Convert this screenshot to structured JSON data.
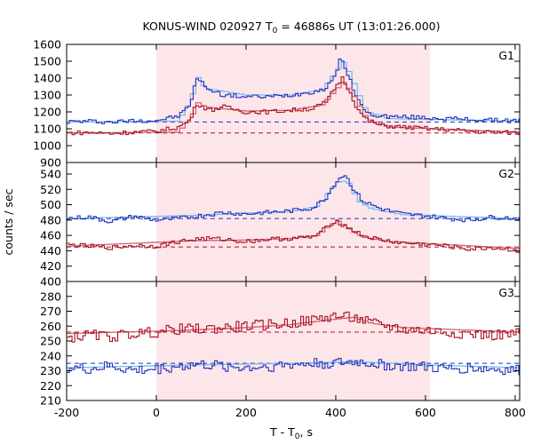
{
  "chart_data": {
    "type": "line",
    "title_main": "KONUS-WIND 020927 T",
    "title_sub": "0",
    "title_rest": " = 46886s UT (13:01:26.000)",
    "xlabel_main": "T - T",
    "xlabel_sub": "0",
    "xlabel_rest": ", s",
    "ylabel": "counts / sec",
    "xlim": [
      -200,
      810
    ],
    "xticks": [
      "-200",
      "0",
      "200",
      "400",
      "600",
      "800"
    ],
    "shaded_interval": [
      0,
      610
    ],
    "colors": {
      "blue_series": "#2233bb",
      "blue_fit": "#77bbee",
      "red_series": "#aa1122",
      "red_fit": "#cc6677",
      "shade": "#fde6ea"
    },
    "panels": [
      {
        "label": "G1",
        "ylim": [
          900,
          1600
        ],
        "yticks": [
          "900",
          "1000",
          "1100",
          "1200",
          "1300",
          "1400",
          "1500",
          "1600"
        ],
        "series": [
          {
            "color": "blue",
            "background": 1140,
            "points": [
              [
                -200,
                1142
              ],
              [
                -150,
                1145
              ],
              [
                -100,
                1140
              ],
              [
                -50,
                1148
              ],
              [
                0,
                1150
              ],
              [
                50,
                1175
              ],
              [
                75,
                1240
              ],
              [
                90,
                1400
              ],
              [
                120,
                1330
              ],
              [
                150,
                1300
              ],
              [
                200,
                1290
              ],
              [
                250,
                1290
              ],
              [
                300,
                1300
              ],
              [
                350,
                1320
              ],
              [
                380,
                1340
              ],
              [
                400,
                1430
              ],
              [
                410,
                1520
              ],
              [
                430,
                1400
              ],
              [
                450,
                1270
              ],
              [
                470,
                1190
              ],
              [
                500,
                1175
              ],
              [
                550,
                1170
              ],
              [
                610,
                1165
              ],
              [
                650,
                1160
              ],
              [
                700,
                1155
              ],
              [
                750,
                1150
              ],
              [
                810,
                1148
              ]
            ],
            "fit": [
              [
                -200,
                1140
              ],
              [
                50,
                1145
              ],
              [
                80,
                1280
              ],
              [
                90,
                1420
              ],
              [
                110,
                1340
              ],
              [
                200,
                1300
              ],
              [
                300,
                1300
              ],
              [
                370,
                1330
              ],
              [
                405,
                1450
              ],
              [
                420,
                1500
              ],
              [
                440,
                1380
              ],
              [
                470,
                1200
              ],
              [
                520,
                1160
              ],
              [
                810,
                1145
              ]
            ]
          },
          {
            "color": "red",
            "background": 1075,
            "points": [
              [
                -200,
                1075
              ],
              [
                -150,
                1078
              ],
              [
                -100,
                1072
              ],
              [
                -50,
                1080
              ],
              [
                0,
                1085
              ],
              [
                50,
                1110
              ],
              [
                75,
                1150
              ],
              [
                90,
                1250
              ],
              [
                120,
                1210
              ],
              [
                150,
                1230
              ],
              [
                200,
                1200
              ],
              [
                250,
                1200
              ],
              [
                300,
                1210
              ],
              [
                350,
                1220
              ],
              [
                380,
                1260
              ],
              [
                400,
                1350
              ],
              [
                415,
                1400
              ],
              [
                430,
                1330
              ],
              [
                450,
                1210
              ],
              [
                470,
                1150
              ],
              [
                500,
                1120
              ],
              [
                550,
                1110
              ],
              [
                610,
                1100
              ],
              [
                650,
                1095
              ],
              [
                700,
                1085
              ],
              [
                750,
                1080
              ],
              [
                810,
                1075
              ]
            ],
            "fit": [
              [
                -200,
                1075
              ],
              [
                50,
                1080
              ],
              [
                80,
                1170
              ],
              [
                90,
                1260
              ],
              [
                110,
                1230
              ],
              [
                200,
                1205
              ],
              [
                300,
                1210
              ],
              [
                370,
                1240
              ],
              [
                405,
                1340
              ],
              [
                420,
                1380
              ],
              [
                440,
                1300
              ],
              [
                470,
                1160
              ],
              [
                520,
                1110
              ],
              [
                810,
                1080
              ]
            ]
          }
        ]
      },
      {
        "label": "G2",
        "ylim": [
          400,
          555
        ],
        "yticks": [
          "400",
          "420",
          "440",
          "460",
          "480",
          "500",
          "520",
          "540"
        ],
        "series": [
          {
            "color": "blue",
            "background": 482,
            "points": [
              [
                -200,
                482
              ],
              [
                -150,
                484
              ],
              [
                -100,
                478
              ],
              [
                -50,
                485
              ],
              [
                0,
                480
              ],
              [
                50,
                482
              ],
              [
                100,
                486
              ],
              [
                150,
                490
              ],
              [
                200,
                488
              ],
              [
                250,
                490
              ],
              [
                300,
                492
              ],
              [
                350,
                496
              ],
              [
                380,
                510
              ],
              [
                400,
                530
              ],
              [
                420,
                540
              ],
              [
                440,
                520
              ],
              [
                460,
                505
              ],
              [
                500,
                495
              ],
              [
                550,
                488
              ],
              [
                610,
                485
              ],
              [
                650,
                482
              ],
              [
                700,
                480
              ],
              [
                750,
                484
              ],
              [
                810,
                482
              ]
            ],
            "fit": [
              [
                -200,
                482
              ],
              [
                80,
                486
              ],
              [
                200,
                489
              ],
              [
                300,
                491
              ],
              [
                360,
                498
              ],
              [
                390,
                520
              ],
              [
                410,
                532
              ],
              [
                430,
                528
              ],
              [
                450,
                505
              ],
              [
                480,
                495
              ],
              [
                550,
                487
              ],
              [
                810,
                482
              ]
            ]
          },
          {
            "color": "red",
            "background": 445,
            "points": [
              [
                -200,
                448
              ],
              [
                -150,
                446
              ],
              [
                -100,
                444
              ],
              [
                -50,
                447
              ],
              [
                0,
                446
              ],
              [
                50,
                452
              ],
              [
                100,
                456
              ],
              [
                150,
                455
              ],
              [
                200,
                452
              ],
              [
                250,
                455
              ],
              [
                300,
                456
              ],
              [
                350,
                458
              ],
              [
                380,
                470
              ],
              [
                400,
                480
              ],
              [
                420,
                472
              ],
              [
                440,
                466
              ],
              [
                460,
                460
              ],
              [
                500,
                454
              ],
              [
                550,
                450
              ],
              [
                610,
                448
              ],
              [
                650,
                446
              ],
              [
                700,
                442
              ],
              [
                750,
                444
              ],
              [
                810,
                440
              ]
            ],
            "fit": [
              [
                -200,
                446
              ],
              [
                80,
                453
              ],
              [
                200,
                454
              ],
              [
                300,
                456
              ],
              [
                360,
                460
              ],
              [
                390,
                474
              ],
              [
                405,
                479
              ],
              [
                430,
                470
              ],
              [
                460,
                458
              ],
              [
                520,
                452
              ],
              [
                810,
                443
              ]
            ]
          }
        ]
      },
      {
        "label": "G3",
        "ylim": [
          210,
          290
        ],
        "yticks": [
          "210",
          "220",
          "230",
          "240",
          "250",
          "260",
          "270",
          "280"
        ],
        "series": [
          {
            "color": "red",
            "background": 256,
            "points": [
              [
                -200,
                252
              ],
              [
                -150,
                254
              ],
              [
                -100,
                253
              ],
              [
                -50,
                255
              ],
              [
                0,
                256
              ],
              [
                50,
                258
              ],
              [
                100,
                258
              ],
              [
                150,
                259
              ],
              [
                200,
                260
              ],
              [
                250,
                261
              ],
              [
                300,
                262
              ],
              [
                350,
                264
              ],
              [
                380,
                266
              ],
              [
                400,
                267
              ],
              [
                450,
                265
              ],
              [
                480,
                262
              ],
              [
                520,
                260
              ],
              [
                550,
                258
              ],
              [
                610,
                257
              ],
              [
                650,
                256
              ],
              [
                700,
                255
              ],
              [
                750,
                254
              ],
              [
                810,
                255
              ]
            ],
            "fit": [
              [
                -200,
                255
              ],
              [
                50,
                257
              ],
              [
                200,
                259
              ],
              [
                300,
                261
              ],
              [
                380,
                264
              ],
              [
                440,
                266
              ],
              [
                480,
                262
              ],
              [
                550,
                259
              ],
              [
                810,
                256
              ]
            ]
          },
          {
            "color": "blue",
            "background": 235,
            "points": [
              [
                -200,
                232
              ],
              [
                -150,
                231
              ],
              [
                -100,
                233
              ],
              [
                -50,
                230
              ],
              [
                0,
                231
              ],
              [
                50,
                233
              ],
              [
                100,
                234
              ],
              [
                150,
                233
              ],
              [
                200,
                232
              ],
              [
                250,
                233
              ],
              [
                300,
                234
              ],
              [
                350,
                235
              ],
              [
                400,
                235
              ],
              [
                450,
                236
              ],
              [
                500,
                234
              ],
              [
                550,
                233
              ],
              [
                610,
                232
              ],
              [
                650,
                231
              ],
              [
                700,
                232
              ],
              [
                750,
                231
              ],
              [
                810,
                230
              ]
            ],
            "fit": [
              [
                -200,
                232
              ],
              [
                100,
                234
              ],
              [
                300,
                235
              ],
              [
                450,
                236
              ],
              [
                600,
                234
              ],
              [
                810,
                232
              ]
            ]
          }
        ]
      }
    ]
  }
}
